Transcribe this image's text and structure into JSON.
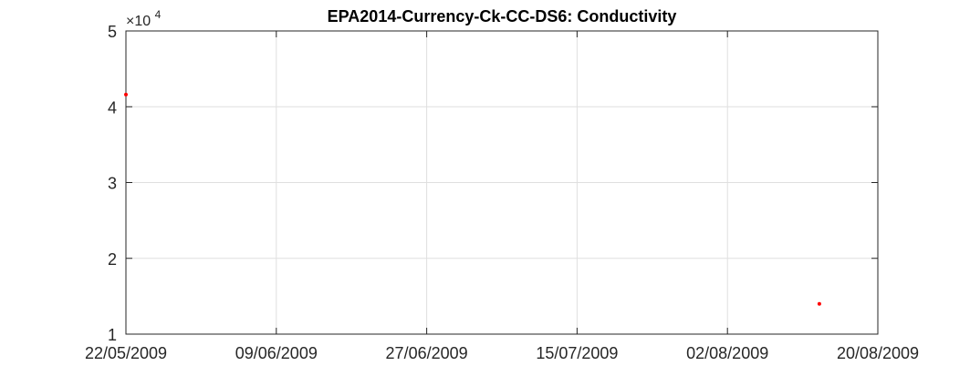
{
  "chart_data": {
    "type": "scatter",
    "title": "EPA2014-Currency-Ck-CC-DS6: Conductivity",
    "xlabel": "",
    "ylabel": "",
    "x_type": "date",
    "xlim": [
      "2009-05-22",
      "2009-08-20"
    ],
    "ylim": [
      10000,
      50000
    ],
    "x_ticks": [
      "2009-05-22",
      "2009-06-09",
      "2009-06-27",
      "2009-07-15",
      "2009-08-02",
      "2009-08-20"
    ],
    "x_tick_labels": [
      "22/05/2009",
      "09/06/2009",
      "27/06/2009",
      "15/07/2009",
      "02/08/2009",
      "20/08/2009"
    ],
    "y_ticks": [
      10000,
      20000,
      30000,
      40000,
      50000
    ],
    "y_tick_labels": [
      "1",
      "2",
      "3",
      "4",
      "5"
    ],
    "y_exponent_prefix": "×10",
    "y_exponent_power": "4",
    "grid": true,
    "marker_color": "#ff0000",
    "series": [
      {
        "x": [
          "2009-05-22",
          "2009-08-13"
        ],
        "y": [
          41600,
          14000
        ]
      }
    ]
  }
}
